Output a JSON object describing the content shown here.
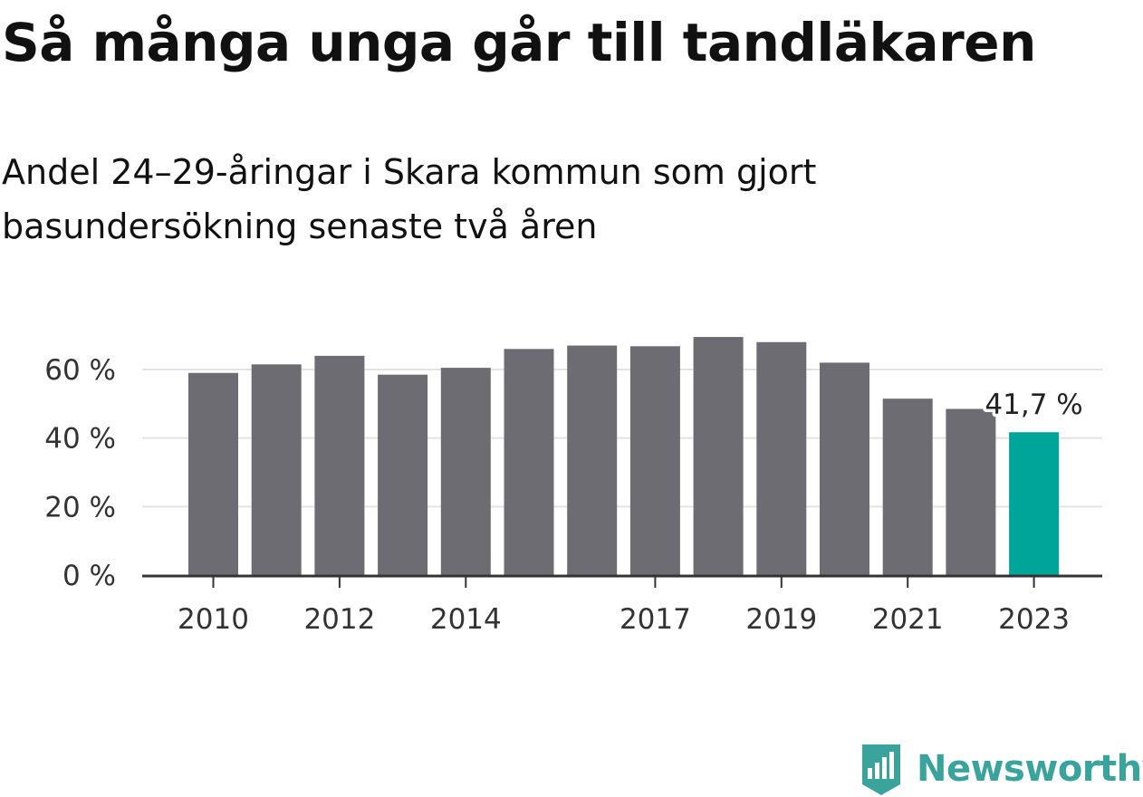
{
  "title": "Så många unga går till tandläkaren",
  "subtitle": "Andel 24–29-åringar i Skara kommun som gjort basundersökning senaste två åren",
  "brand": "Newsworthy",
  "colors": {
    "bar": "#6d6c73",
    "highlight": "#00a59a",
    "grid": "#e3e3e3",
    "axis": "#333333",
    "brand": "#3aa39b"
  },
  "chart_data": {
    "type": "bar",
    "categories": [
      "2010",
      "2011",
      "2012",
      "2013",
      "2014",
      "2015",
      "2016",
      "2017",
      "2018",
      "2019",
      "2020",
      "2021",
      "2022",
      "2023"
    ],
    "values": [
      59,
      61.5,
      64,
      58.5,
      60.5,
      66,
      67,
      66.8,
      69.5,
      68,
      62,
      51.5,
      48.5,
      41.7
    ],
    "highlight_index": 13,
    "x_tick_labels": [
      "2010",
      "2012",
      "2014",
      "2017",
      "2019",
      "2021",
      "2023"
    ],
    "y_ticks": [
      0,
      20,
      40,
      60
    ],
    "y_tick_labels": [
      "0 %",
      "20 %",
      "40 %",
      "60 %"
    ],
    "annotation": "41,7 %",
    "ylim": [
      0,
      70
    ],
    "grid": true,
    "xlabel": "",
    "ylabel": ""
  }
}
